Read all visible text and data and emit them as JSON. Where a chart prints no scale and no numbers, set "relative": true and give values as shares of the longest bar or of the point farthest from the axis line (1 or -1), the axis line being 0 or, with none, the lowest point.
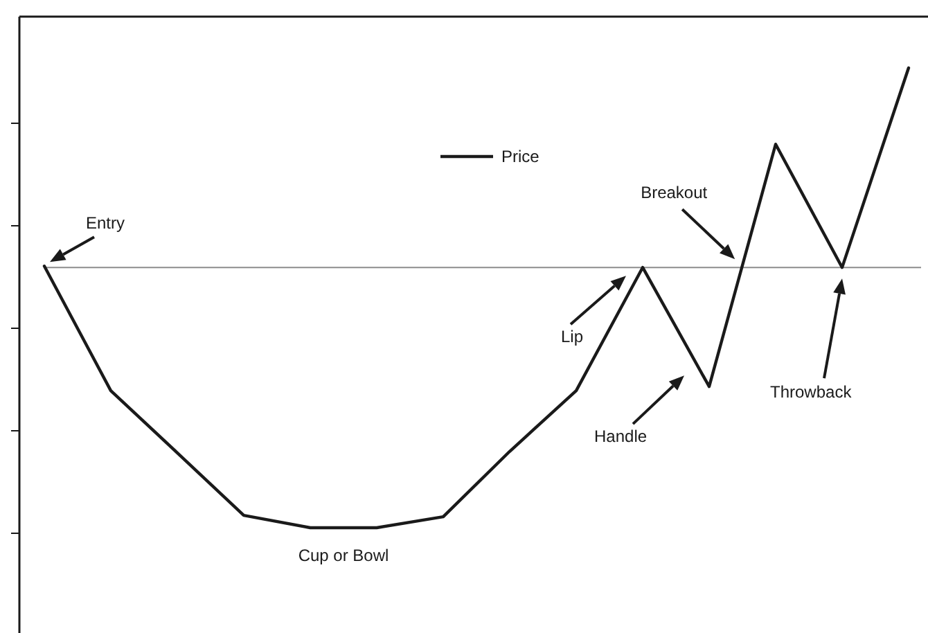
{
  "chart_data": {
    "type": "line",
    "relative": true,
    "categories": [
      null,
      null,
      null,
      null,
      null,
      null,
      null,
      null,
      null,
      null,
      null,
      null,
      null,
      null
    ],
    "series": [
      {
        "name": "Price",
        "color": "#1a1a1a",
        "values": [
          0.569,
          0.298,
          0.163,
          0.027,
          0,
          0,
          0.024,
          0.166,
          0.298,
          0.566,
          0.307,
          0.834,
          0.566,
          1
        ]
      }
    ],
    "ref_lines": [
      {
        "axis": "y",
        "value": 0.566,
        "color": "#8c8c8c"
      }
    ],
    "annotations": [
      "Entry",
      "Lip",
      "Handle",
      "Breakout",
      "Throwback",
      "Cup or Bowl"
    ],
    "legend": "top",
    "line_style": "solid",
    "marker": "none"
  }
}
